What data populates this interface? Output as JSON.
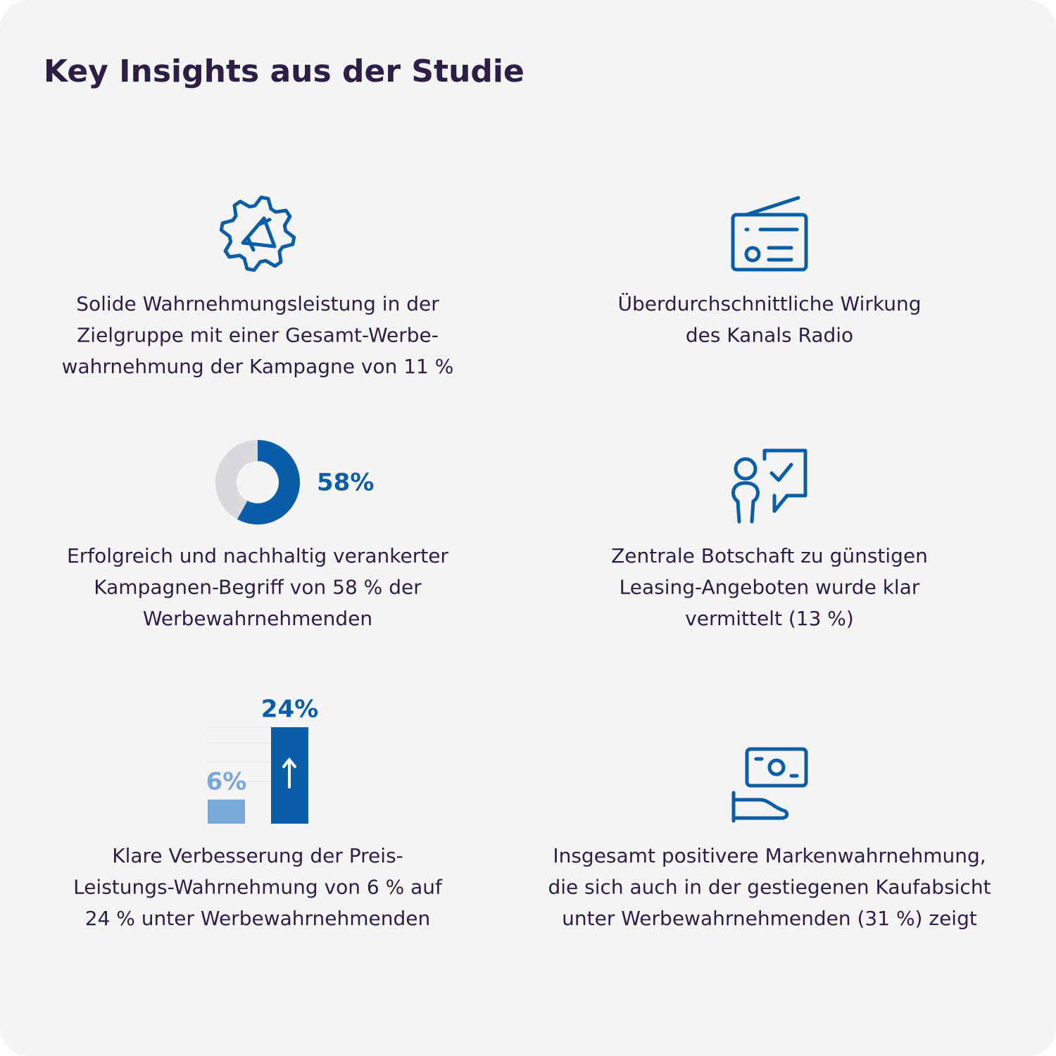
{
  "header": {
    "title": "Key Insights aus der Studie"
  },
  "items": [
    {
      "lines": [
        "Solide Wahrnehmungsleistung in der",
        "Zielgruppe mit einer Gesamt-Werbe-",
        "wahrnehmung der Kampagne von 11 %"
      ]
    },
    {
      "lines": [
        "Überdurchschnittliche Wirkung",
        "des Kanals Radio"
      ]
    },
    {
      "lines": [
        "Erfolgreich und nachhaltig verankerter",
        "Kampagnen-Begriff von 58 % der",
        "Werbewahrnehmenden"
      ]
    },
    {
      "lines": [
        "Zentrale Botschaft zu günstigen",
        "Leasing-Angeboten wurde klar",
        "vermittelt (13 %)"
      ]
    },
    {
      "lines": [
        "Klare Verbesserung der Preis-",
        "Leistungs-Wahrnehmung von 6 % auf",
        "24 % unter Werbewahrnehmenden"
      ]
    },
    {
      "lines": [
        "Insgesamt positivere Markenwahrnehmung,",
        "die sich auch in der gestiegenen Kaufabsicht",
        "unter Werbewahrnehmenden (31 %) zeigt"
      ]
    }
  ],
  "donut": {
    "type": "pie",
    "values": [
      58
    ],
    "value_labels": [
      "58%"
    ],
    "color": "#0a5ea8",
    "track_color": "#d9d9dd"
  },
  "bars": {
    "type": "bar",
    "values": [
      6,
      24
    ],
    "value_labels": [
      "6%",
      "24%"
    ],
    "colors": [
      "#79a8d8",
      "#0a5ea8"
    ],
    "ylim": [
      0,
      24
    ]
  }
}
